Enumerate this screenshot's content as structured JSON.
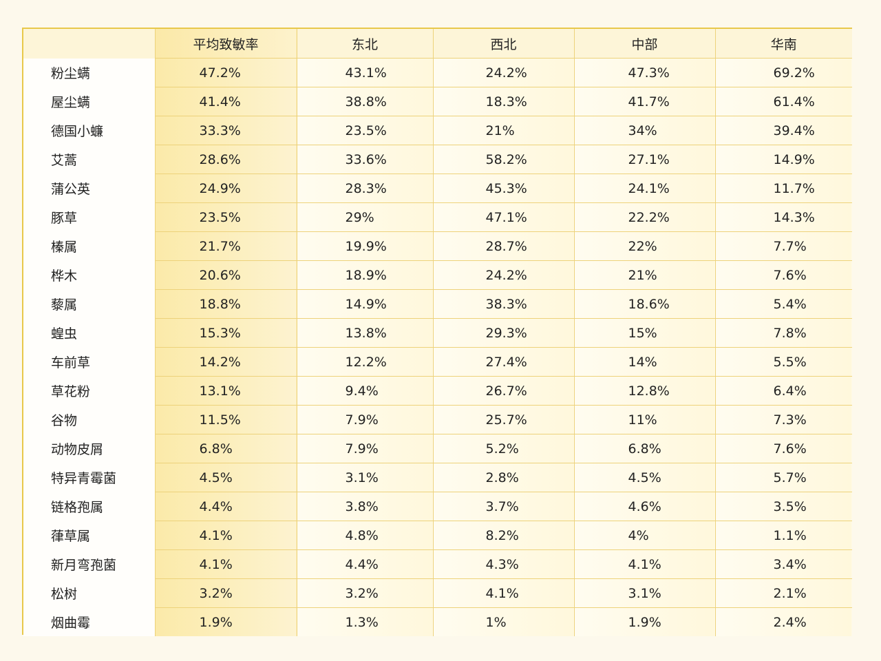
{
  "chart_data": {
    "type": "table",
    "columns": [
      "",
      "平均致敏率",
      "东北",
      "西北",
      "中部",
      "华南"
    ],
    "rows": [
      {
        "name": "粉尘螨",
        "values": [
          "47.2%",
          "43.1%",
          "24.2%",
          "47.3%",
          "69.2%"
        ]
      },
      {
        "name": "屋尘螨",
        "values": [
          "41.4%",
          "38.8%",
          "18.3%",
          "41.7%",
          "61.4%"
        ]
      },
      {
        "name": "德国小蠊",
        "values": [
          "33.3%",
          "23.5%",
          "21%",
          "34%",
          "39.4%"
        ]
      },
      {
        "name": "艾蒿",
        "values": [
          "28.6%",
          "33.6%",
          "58.2%",
          "27.1%",
          "14.9%"
        ]
      },
      {
        "name": "蒲公英",
        "values": [
          "24.9%",
          "28.3%",
          "45.3%",
          "24.1%",
          "11.7%"
        ]
      },
      {
        "name": "豚草",
        "values": [
          "23.5%",
          "29%",
          "47.1%",
          "22.2%",
          "14.3%"
        ]
      },
      {
        "name": "榛属",
        "values": [
          "21.7%",
          "19.9%",
          "28.7%",
          "22%",
          "7.7%"
        ]
      },
      {
        "name": "桦木",
        "values": [
          "20.6%",
          "18.9%",
          "24.2%",
          "21%",
          "7.6%"
        ]
      },
      {
        "name": "藜属",
        "values": [
          "18.8%",
          "14.9%",
          "38.3%",
          "18.6%",
          "5.4%"
        ]
      },
      {
        "name": "蝗虫",
        "values": [
          "15.3%",
          "13.8%",
          "29.3%",
          "15%",
          "7.8%"
        ]
      },
      {
        "name": "车前草",
        "values": [
          "14.2%",
          "12.2%",
          "27.4%",
          "14%",
          "5.5%"
        ]
      },
      {
        "name": "草花粉",
        "values": [
          "13.1%",
          "9.4%",
          "26.7%",
          "12.8%",
          "6.4%"
        ]
      },
      {
        "name": "谷物",
        "values": [
          "11.5%",
          "7.9%",
          "25.7%",
          "11%",
          "7.3%"
        ]
      },
      {
        "name": "动物皮屑",
        "values": [
          "6.8%",
          "7.9%",
          "5.2%",
          "6.8%",
          "7.6%"
        ]
      },
      {
        "name": "特异青霉菌",
        "values": [
          "4.5%",
          "3.1%",
          "2.8%",
          "4.5%",
          "5.7%"
        ]
      },
      {
        "name": "链格孢属",
        "values": [
          "4.4%",
          "3.8%",
          "3.7%",
          "4.6%",
          "3.5%"
        ]
      },
      {
        "name": "葎草属",
        "values": [
          "4.1%",
          "4.8%",
          "8.2%",
          "4%",
          "1.1%"
        ]
      },
      {
        "name": "新月弯孢菌",
        "values": [
          "4.1%",
          "4.4%",
          "4.3%",
          "4.1%",
          "3.4%"
        ]
      },
      {
        "name": "松树",
        "values": [
          "3.2%",
          "3.2%",
          "4.1%",
          "3.1%",
          "2.1%"
        ]
      },
      {
        "name": "烟曲霉",
        "values": [
          "1.9%",
          "1.3%",
          "1%",
          "1.9%",
          "2.4%"
        ]
      }
    ],
    "colors": {
      "border": "#e8c84a",
      "grid": "#edd27a",
      "highlight": "#fbe9a8",
      "background": "#fdf9ec"
    }
  }
}
